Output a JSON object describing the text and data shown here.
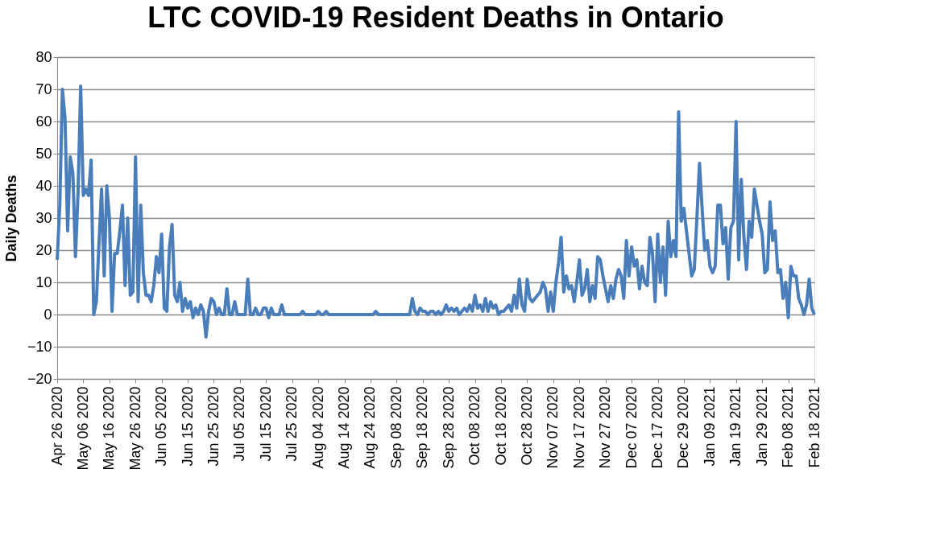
{
  "chart_data": {
    "type": "line",
    "title": "LTC COVID-19 Resident Deaths in Ontario",
    "ylabel": "Daily Deaths",
    "categories": [
      "Apr 26 2020",
      null,
      null,
      null,
      null,
      null,
      null,
      null,
      null,
      null,
      "May 06 2020",
      null,
      null,
      null,
      null,
      null,
      null,
      null,
      null,
      null,
      "May 16 2020",
      null,
      null,
      null,
      null,
      null,
      null,
      null,
      null,
      null,
      "May 26 2020",
      null,
      null,
      null,
      null,
      null,
      null,
      null,
      null,
      null,
      "Jun 05 2020",
      null,
      null,
      null,
      null,
      null,
      null,
      null,
      null,
      null,
      "Jun 15 2020",
      null,
      null,
      null,
      null,
      null,
      null,
      null,
      null,
      null,
      "Jun 25 2020",
      null,
      null,
      null,
      null,
      null,
      null,
      null,
      null,
      null,
      "Jul 05 2020",
      null,
      null,
      null,
      null,
      null,
      null,
      null,
      null,
      null,
      "Jul 15 2020",
      null,
      null,
      null,
      null,
      null,
      null,
      null,
      null,
      null,
      "Jul 25 2020",
      null,
      null,
      null,
      null,
      null,
      null,
      null,
      null,
      null,
      "Aug 04 2020",
      null,
      null,
      null,
      null,
      null,
      null,
      null,
      null,
      null,
      "Aug 14 2020",
      null,
      null,
      null,
      null,
      null,
      null,
      null,
      null,
      null,
      "Aug 24 2020",
      null,
      null,
      null,
      null,
      null,
      null,
      null,
      null,
      null,
      "Sep 08 2020",
      null,
      null,
      null,
      null,
      null,
      null,
      null,
      null,
      null,
      "Sep 18 2020",
      null,
      null,
      null,
      null,
      null,
      null,
      null,
      null,
      null,
      "Sep 28 2020",
      null,
      null,
      null,
      null,
      null,
      null,
      null,
      null,
      null,
      "Oct 08 2020",
      null,
      null,
      null,
      null,
      null,
      null,
      null,
      null,
      null,
      "Oct 18 2020",
      null,
      null,
      null,
      null,
      null,
      null,
      null,
      null,
      null,
      "Oct 28 2020",
      null,
      null,
      null,
      null,
      null,
      null,
      null,
      null,
      null,
      "Nov 07 2020",
      null,
      null,
      null,
      null,
      null,
      null,
      null,
      null,
      null,
      "Nov 17 2020",
      null,
      null,
      null,
      null,
      null,
      null,
      null,
      null,
      null,
      "Nov 27 2020",
      null,
      null,
      null,
      null,
      null,
      null,
      null,
      null,
      null,
      "Dec 07 2020",
      null,
      null,
      null,
      null,
      null,
      null,
      null,
      null,
      null,
      "Dec 17 2020",
      null,
      null,
      null,
      null,
      null,
      null,
      null,
      null,
      null,
      "Dec 29 2020",
      null,
      null,
      null,
      null,
      null,
      null,
      null,
      null,
      null,
      "Jan 09 2021",
      null,
      null,
      null,
      null,
      null,
      null,
      null,
      null,
      null,
      "Jan 19 2021",
      null,
      null,
      null,
      null,
      null,
      null,
      null,
      null,
      null,
      "Jan 29 2021",
      null,
      null,
      null,
      null,
      null,
      null,
      null,
      null,
      null,
      "Feb 08 2021",
      null,
      null,
      null,
      null,
      null,
      null,
      null,
      null,
      null,
      "Feb 18 2021"
    ],
    "series": [
      {
        "color": "#4a7ebb",
        "values": [
          17,
          34,
          70,
          61,
          26,
          49,
          44,
          18,
          38,
          71,
          37,
          39,
          37,
          48,
          0,
          4,
          22,
          39,
          12,
          40,
          30,
          1,
          19,
          19,
          26,
          34,
          9,
          30,
          6,
          7,
          49,
          4,
          34,
          13,
          6,
          6,
          4,
          9,
          18,
          13,
          25,
          2,
          1,
          21,
          28,
          6,
          4,
          10,
          1,
          5,
          2,
          4,
          -1,
          2,
          0,
          3,
          1,
          -7,
          1,
          5,
          4,
          0,
          2,
          0,
          0,
          8,
          0,
          0,
          4,
          0,
          0,
          0,
          0,
          11,
          0,
          0,
          2,
          0,
          0,
          2,
          2,
          -1,
          2,
          0,
          0,
          0,
          3,
          0,
          0,
          0,
          0,
          0,
          0,
          0,
          1,
          0,
          0,
          0,
          0,
          0,
          1,
          0,
          0,
          1,
          0,
          0,
          0,
          0,
          0,
          0,
          0,
          0,
          0,
          0,
          0,
          0,
          0,
          0,
          0,
          0,
          0,
          0,
          1,
          0,
          0,
          0,
          0,
          0,
          0,
          0,
          0,
          0,
          0,
          0,
          0,
          0,
          5,
          1,
          0,
          2,
          1,
          1,
          0,
          1,
          1,
          0,
          1,
          0,
          1,
          3,
          1,
          2,
          1,
          2,
          0,
          1,
          2,
          1,
          3,
          1,
          6,
          2,
          3,
          1,
          5,
          1,
          4,
          2,
          3,
          0,
          1,
          1,
          2,
          3,
          1,
          6,
          2,
          11,
          3,
          1,
          11,
          5,
          4,
          5,
          6,
          7,
          10,
          8,
          1,
          7,
          1,
          10,
          16,
          24,
          7,
          12,
          8,
          9,
          4,
          10,
          17,
          6,
          8,
          14,
          4,
          9,
          5,
          18,
          17,
          12,
          8,
          4,
          9,
          5,
          11,
          14,
          12,
          5,
          23,
          12,
          21,
          15,
          17,
          8,
          15,
          10,
          9,
          24,
          19,
          4,
          25,
          10,
          21,
          6,
          29,
          18,
          23,
          18,
          63,
          29,
          33,
          26,
          19,
          12,
          14,
          30,
          47,
          33,
          20,
          23,
          15,
          13,
          15,
          34,
          34,
          22,
          27,
          11,
          27,
          29,
          60,
          17,
          42,
          24,
          14,
          29,
          24,
          39,
          34,
          29,
          25,
          13,
          14,
          35,
          23,
          26,
          13,
          14,
          5,
          10,
          -1,
          15,
          12,
          12,
          5,
          3,
          0,
          3,
          11,
          2,
          0
        ]
      }
    ],
    "ylim": [
      -20,
      80
    ],
    "yticks": [
      -20,
      -10,
      0,
      10,
      20,
      30,
      40,
      50,
      60,
      70,
      80
    ],
    "grid": "y",
    "marker": "none",
    "line_style": "solid"
  }
}
